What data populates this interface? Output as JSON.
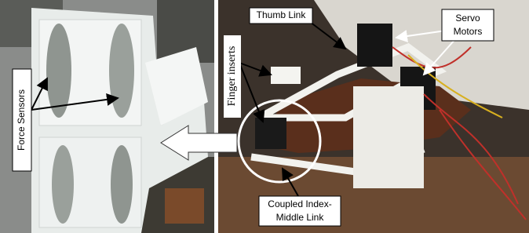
{
  "labels": {
    "force_sensors": "Force Sensors",
    "thumb_link": "Thumb Link",
    "servo_motors": [
      "Servo",
      "Motors"
    ],
    "finger_inserts": "Finger inserts",
    "coupled_link": [
      "Coupled Index-",
      "Middle Link"
    ]
  }
}
